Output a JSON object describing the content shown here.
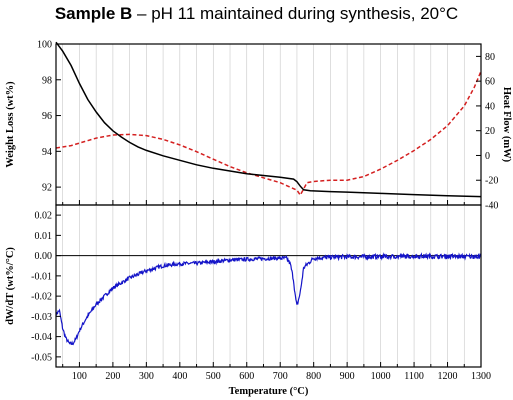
{
  "title": {
    "bold": "Sample B",
    "rest": " – pH 11 maintained during synthesis, 20°C"
  },
  "colors": {
    "weight_loss": "#000000",
    "heat_flow": "#d42020",
    "dwdt": "#1414c8",
    "grid": "#c8c8c8"
  },
  "chart_data": [
    {
      "type": "line",
      "panel": "top",
      "xlabel": "",
      "xlim": [
        30,
        1300
      ],
      "grid": "vertical",
      "y_left": {
        "label": "Weight Loss (wt%)",
        "lim": [
          91,
          100
        ],
        "ticks": [
          "92",
          "94",
          "96",
          "98",
          "100"
        ]
      },
      "y_right": {
        "label": "Heat Flow (mW)",
        "lim": [
          -40,
          90
        ],
        "ticks": [
          "-40",
          "-20",
          "0",
          "20",
          "40",
          "60",
          "80"
        ]
      },
      "series": [
        {
          "axis": "left",
          "style": "solid",
          "x": [
            30,
            50,
            75,
            100,
            125,
            150,
            175,
            200,
            225,
            250,
            275,
            300,
            350,
            400,
            450,
            500,
            550,
            600,
            650,
            700,
            740,
            750,
            760,
            770,
            790,
            850,
            900,
            1000,
            1100,
            1200,
            1300
          ],
          "y": [
            100.1,
            99.6,
            98.8,
            97.8,
            96.9,
            96.2,
            95.6,
            95.15,
            94.8,
            94.5,
            94.25,
            94.05,
            93.75,
            93.5,
            93.25,
            93.05,
            92.9,
            92.75,
            92.65,
            92.55,
            92.45,
            92.3,
            92.05,
            91.85,
            91.8,
            91.75,
            91.72,
            91.65,
            91.58,
            91.52,
            91.47
          ]
        },
        {
          "axis": "right",
          "style": "dashed",
          "x": [
            30,
            75,
            100,
            150,
            200,
            250,
            300,
            350,
            400,
            450,
            500,
            550,
            600,
            650,
            700,
            750,
            760,
            780,
            800,
            850,
            900,
            950,
            1000,
            1050,
            1100,
            1150,
            1200,
            1250,
            1280,
            1300
          ],
          "y": [
            6,
            8,
            10,
            14,
            16.5,
            17,
            16,
            13,
            8.5,
            3,
            -3,
            -9,
            -14,
            -18,
            -22,
            -28,
            -32,
            -22,
            -21,
            -20,
            -20,
            -17,
            -11,
            -4,
            4,
            13,
            24,
            40,
            55,
            68
          ]
        }
      ]
    },
    {
      "type": "line",
      "panel": "bottom",
      "xlabel": "Temperature (°C)",
      "xlim": [
        30,
        1300
      ],
      "xticks": [
        "100",
        "200",
        "300",
        "400",
        "500",
        "600",
        "700",
        "800",
        "900",
        "1000",
        "1100",
        "1200",
        "1300"
      ],
      "grid": "vertical",
      "y_left": {
        "label": "dW/dT (wt%/°C)",
        "lim": [
          -0.055,
          0.025
        ],
        "ticks": [
          "-0.05",
          "-0.04",
          "-0.03",
          "-0.02",
          "-0.01",
          "0.00",
          "0.01",
          "0.02"
        ]
      },
      "reference_line": 0,
      "series": [
        {
          "axis": "left",
          "style": "solid",
          "noisy": true,
          "x": [
            30,
            40,
            50,
            60,
            70,
            80,
            90,
            100,
            120,
            150,
            200,
            250,
            300,
            350,
            400,
            450,
            500,
            550,
            600,
            650,
            700,
            720,
            730,
            740,
            745,
            750,
            760,
            770,
            800,
            850,
            900,
            1000,
            1100,
            1200,
            1300
          ],
          "y": [
            -0.029,
            -0.027,
            -0.036,
            -0.041,
            -0.0435,
            -0.0435,
            -0.041,
            -0.037,
            -0.031,
            -0.024,
            -0.016,
            -0.011,
            -0.0075,
            -0.005,
            -0.004,
            -0.0038,
            -0.003,
            -0.0022,
            -0.0018,
            -0.0015,
            -0.0012,
            -0.0015,
            -0.004,
            -0.012,
            -0.02,
            -0.025,
            -0.018,
            -0.006,
            -0.0012,
            -0.0008,
            -0.0006,
            -0.0005,
            -0.0003,
            -0.0004,
            -0.0005
          ]
        }
      ]
    }
  ]
}
